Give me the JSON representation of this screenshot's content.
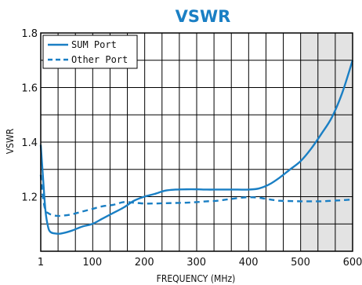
{
  "chart_data": {
    "type": "line",
    "title": "VSWR",
    "title_color": "#1a7fc4",
    "xlabel": "FREQUENCY (MHz)",
    "ylabel": "VSWR",
    "xlim": [
      1,
      600
    ],
    "ylim": [
      1.0,
      1.8
    ],
    "x_ticks": [
      1,
      100,
      200,
      300,
      400,
      500,
      600
    ],
    "x_tick_labels": [
      "1",
      "100",
      "200",
      "300",
      "400",
      "500",
      "600"
    ],
    "y_ticks": [
      1.2,
      1.4,
      1.6,
      1.8
    ],
    "y_tick_labels": [
      "1.2",
      "1.4",
      "1.6",
      "1.8"
    ],
    "grid": true,
    "shaded_region": {
      "x": [
        500,
        600
      ],
      "color": "#e3e3e3"
    },
    "legend": {
      "placement": "top-left"
    },
    "series": [
      {
        "name": "SUM Port",
        "style": "solid",
        "color": "#1a7fc4",
        "x": [
          1,
          5,
          10,
          15,
          20,
          30,
          40,
          60,
          80,
          100,
          120,
          140,
          160,
          180,
          200,
          220,
          240,
          260,
          280,
          300,
          320,
          340,
          360,
          380,
          400,
          420,
          440,
          460,
          480,
          500,
          520,
          540,
          560,
          580,
          600
        ],
        "y": [
          1.39,
          1.28,
          1.15,
          1.09,
          1.07,
          1.065,
          1.065,
          1.075,
          1.09,
          1.1,
          1.12,
          1.14,
          1.16,
          1.185,
          1.2,
          1.21,
          1.222,
          1.226,
          1.227,
          1.227,
          1.226,
          1.226,
          1.226,
          1.226,
          1.226,
          1.23,
          1.245,
          1.27,
          1.3,
          1.33,
          1.375,
          1.43,
          1.49,
          1.58,
          1.7
        ]
      },
      {
        "name": "Other Port",
        "style": "dashed",
        "color": "#1a7fc4",
        "x": [
          1,
          5,
          10,
          15,
          20,
          30,
          40,
          60,
          80,
          100,
          120,
          140,
          160,
          180,
          200,
          220,
          240,
          260,
          280,
          300,
          320,
          340,
          360,
          380,
          400,
          420,
          440,
          460,
          480,
          500,
          520,
          540,
          560,
          580,
          600
        ],
        "y": [
          1.28,
          1.2,
          1.15,
          1.14,
          1.135,
          1.13,
          1.13,
          1.135,
          1.145,
          1.155,
          1.165,
          1.17,
          1.18,
          1.178,
          1.175,
          1.175,
          1.176,
          1.177,
          1.178,
          1.18,
          1.183,
          1.185,
          1.19,
          1.195,
          1.198,
          1.196,
          1.19,
          1.185,
          1.184,
          1.183,
          1.183,
          1.183,
          1.185,
          1.187,
          1.19
        ]
      }
    ]
  }
}
